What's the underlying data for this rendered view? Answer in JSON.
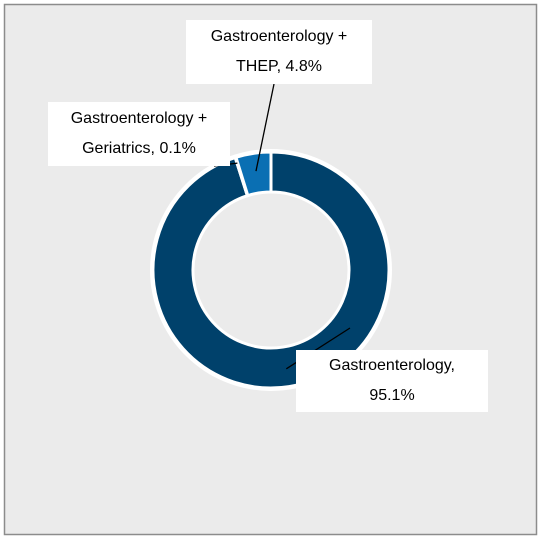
{
  "chart_data": {
    "type": "donut",
    "values": [
      95.1,
      0.1,
      4.8
    ],
    "value_labels": [
      "Gastroenterology, 95.1%",
      "Gastroenterology + Geriatrics, 0.1%",
      "Gastroenterology + THEP, 4.8%"
    ],
    "colors": [
      "#00416b",
      "#0a6fb3",
      "#0a6fb3"
    ]
  }
}
